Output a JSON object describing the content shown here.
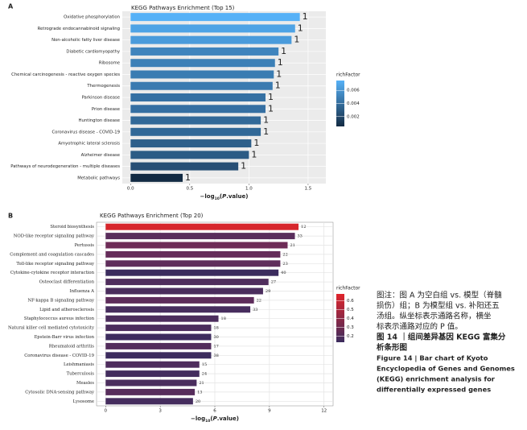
{
  "chart_data": [
    {
      "type": "barh",
      "panel": "A",
      "title": "KEGG Pathways Enrichment (Top 15)",
      "xlabel": [
        "−log",
        "10",
        "(",
        "P",
        ".value)"
      ],
      "categories": [
        "Oxidative phosphorylation",
        "Retrograde endocannabinoid signaling",
        "Non-alcoholic fatty liver disease",
        "Diabetic cardiomyopathy",
        "Ribosome",
        "Chemical carcinogenesis - reactive oxygen species",
        "Thermogenesis",
        "Parkinson disease",
        "Prion disease",
        "Huntington disease",
        "Coronavirus disease - COVID-19",
        "Amyotrophic lateral sclerosis",
        "Alzheimer disease",
        "Pathways of neurodegeneration - multiple diseases",
        "Metabolic pathways"
      ],
      "values": [
        1.43,
        1.39,
        1.36,
        1.25,
        1.22,
        1.21,
        1.2,
        1.14,
        1.14,
        1.1,
        1.1,
        1.02,
        1.0,
        0.91,
        0.44
      ],
      "counts": [
        1,
        1,
        1,
        1,
        1,
        1,
        1,
        1,
        1,
        1,
        1,
        1,
        1,
        1,
        1
      ],
      "colors": [
        "#56b1f7",
        "#4ea3e5",
        "#4a9bdb",
        "#3f84bd",
        "#3c80b7",
        "#3a7cb2",
        "#3a7ab0",
        "#3570a3",
        "#356fa2",
        "#326998",
        "#316897",
        "#2d5f8a",
        "#2b5b85",
        "#284f75",
        "#132b43"
      ],
      "xlim": [
        -0.07,
        1.65
      ],
      "xticks": [
        {
          "value": 0,
          "label": "0.0"
        },
        {
          "value": 0.5,
          "label": "0.5"
        },
        {
          "value": 1,
          "label": "1.0"
        },
        {
          "value": 1.5,
          "label": "1.5"
        }
      ],
      "grid": true,
      "color_scale": {
        "title": "richFactor",
        "lim": [
          0.0005,
          0.0075
        ],
        "ticks": [
          0.002,
          0.004,
          0.006
        ],
        "colors": [
          "#132b43",
          "#56b1f7"
        ]
      }
    },
    {
      "type": "barh",
      "panel": "B",
      "title": "KEGG Pathways Enrichment (Top 20)",
      "xlabel": [
        "−log",
        "10",
        "(",
        "P",
        ".value)"
      ],
      "categories": [
        "Steroid biosynthesis",
        "NOD-like receptor signaling pathway",
        "Pertussis",
        "Complement and coagulation cascades",
        "Toll-like receptor signaling pathway",
        "Cytokine-cytokine receptor interaction",
        "Osteoclast differentiation",
        "Influenza A",
        "NF-kappa B signaling pathway",
        "Lipid and atherosclerosis",
        "Staphylococcus aureus infection",
        "Natural killer cell mediated cytotoxicity",
        "Epstein-Barr virus infection",
        "Rheumatoid arthritis",
        "Coronavirus disease - COVID-19",
        "Leishmaniasis",
        "Tuberculosis",
        "Measles",
        "Cytosolic DNA-sensing pathway",
        "Lysosome"
      ],
      "values": [
        10.6,
        10.4,
        10.0,
        9.6,
        9.6,
        9.5,
        8.95,
        8.65,
        8.15,
        7.95,
        6.2,
        5.8,
        5.8,
        5.8,
        5.8,
        5.15,
        5.15,
        5.0,
        4.9,
        4.8
      ],
      "counts": [
        12,
        33,
        21,
        22,
        23,
        40,
        27,
        29,
        22,
        33,
        18,
        18,
        30,
        17,
        38,
        15,
        24,
        21,
        13,
        20
      ],
      "colors": [
        "#d7262c",
        "#5a2d5c",
        "#6e2c57",
        "#652c5a",
        "#5f2d5b",
        "#3b2c5e",
        "#4f2d5d",
        "#4a2d5d",
        "#5d2c5b",
        "#472d5e",
        "#4c2d5d",
        "#4b2d5d",
        "#3d2c5e",
        "#532d5c",
        "#3c2c5e",
        "#4e2d5d",
        "#432d5e",
        "#4a2d5d",
        "#572d5c",
        "#452d5e"
      ],
      "xlim": [
        -0.5,
        12.5
      ],
      "xticks": [
        0,
        3,
        6,
        9,
        12
      ],
      "grid": true,
      "color_scale": {
        "title": "richFactor",
        "lim": [
          0.13,
          0.68
        ],
        "ticks": [
          0.2,
          0.3,
          0.4,
          0.5,
          0.6
        ],
        "colors": [
          "#3b2c5e",
          "#e0242b"
        ]
      }
    }
  ],
  "caption": {
    "note": [
      "图注：图 A 为空白组 vs. 模型（脊髓",
      "损伤）组；B 为模型组 vs. 补阳还五",
      "汤组。纵坐标表示通路名称，横坐",
      "标表示通路对应的 P 值。"
    ],
    "title_cn": [
      "图 14 ｜组间差异基因 KEGG 富集分",
      "析条形图"
    ],
    "title_en": [
      "Figure 14  |  Bar chart of Kyoto",
      "Encyclopedia of Genes and Genomes",
      "(KEGG) enrichment analysis for",
      "differentially expressed genes"
    ]
  }
}
